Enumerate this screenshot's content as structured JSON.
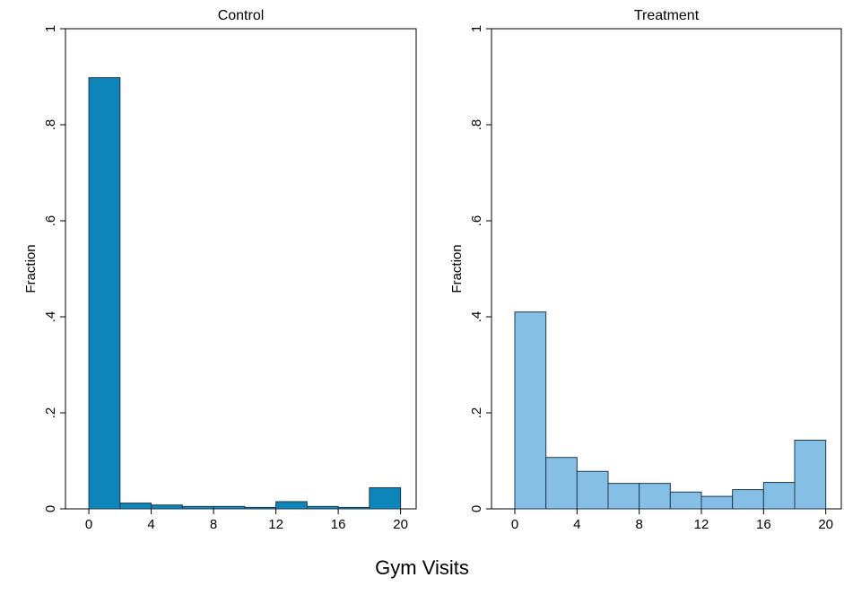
{
  "xlabel": "Gym Visits",
  "chart_data": [
    {
      "type": "bar",
      "title": "Control",
      "ylabel": "Fraction",
      "xlabel": "",
      "bin_edges": [
        0,
        2,
        4,
        6,
        8,
        10,
        12,
        14,
        16,
        18,
        20
      ],
      "values": [
        0.898,
        0.012,
        0.008,
        0.005,
        0.005,
        0.003,
        0.015,
        0.005,
        0.003,
        0.044
      ],
      "xlim": [
        -1.5,
        21
      ],
      "ylim": [
        0,
        1
      ],
      "xticks": [
        0,
        4,
        8,
        12,
        16,
        20
      ],
      "xtick_labels": [
        "0",
        "4",
        "8",
        "12",
        "16",
        "20"
      ],
      "yticks": [
        0,
        0.2,
        0.4,
        0.6,
        0.8,
        1
      ],
      "ytick_labels": [
        "0",
        ".2",
        ".4",
        ".6",
        ".8",
        "1"
      ],
      "bar_color": "#0e85b8",
      "grid": false
    },
    {
      "type": "bar",
      "title": "Treatment",
      "ylabel": "Fraction",
      "xlabel": "",
      "bin_edges": [
        0,
        2,
        4,
        6,
        8,
        10,
        12,
        14,
        16,
        18,
        20
      ],
      "values": [
        0.41,
        0.107,
        0.078,
        0.053,
        0.053,
        0.035,
        0.026,
        0.04,
        0.055,
        0.143
      ],
      "xlim": [
        -1.5,
        21
      ],
      "ylim": [
        0,
        1
      ],
      "xticks": [
        0,
        4,
        8,
        12,
        16,
        20
      ],
      "xtick_labels": [
        "0",
        "4",
        "8",
        "12",
        "16",
        "20"
      ],
      "yticks": [
        0,
        0.2,
        0.4,
        0.6,
        0.8,
        1
      ],
      "ytick_labels": [
        "0",
        ".2",
        ".4",
        ".6",
        ".8",
        "1"
      ],
      "bar_color": "#86bfe6",
      "grid": false
    }
  ]
}
